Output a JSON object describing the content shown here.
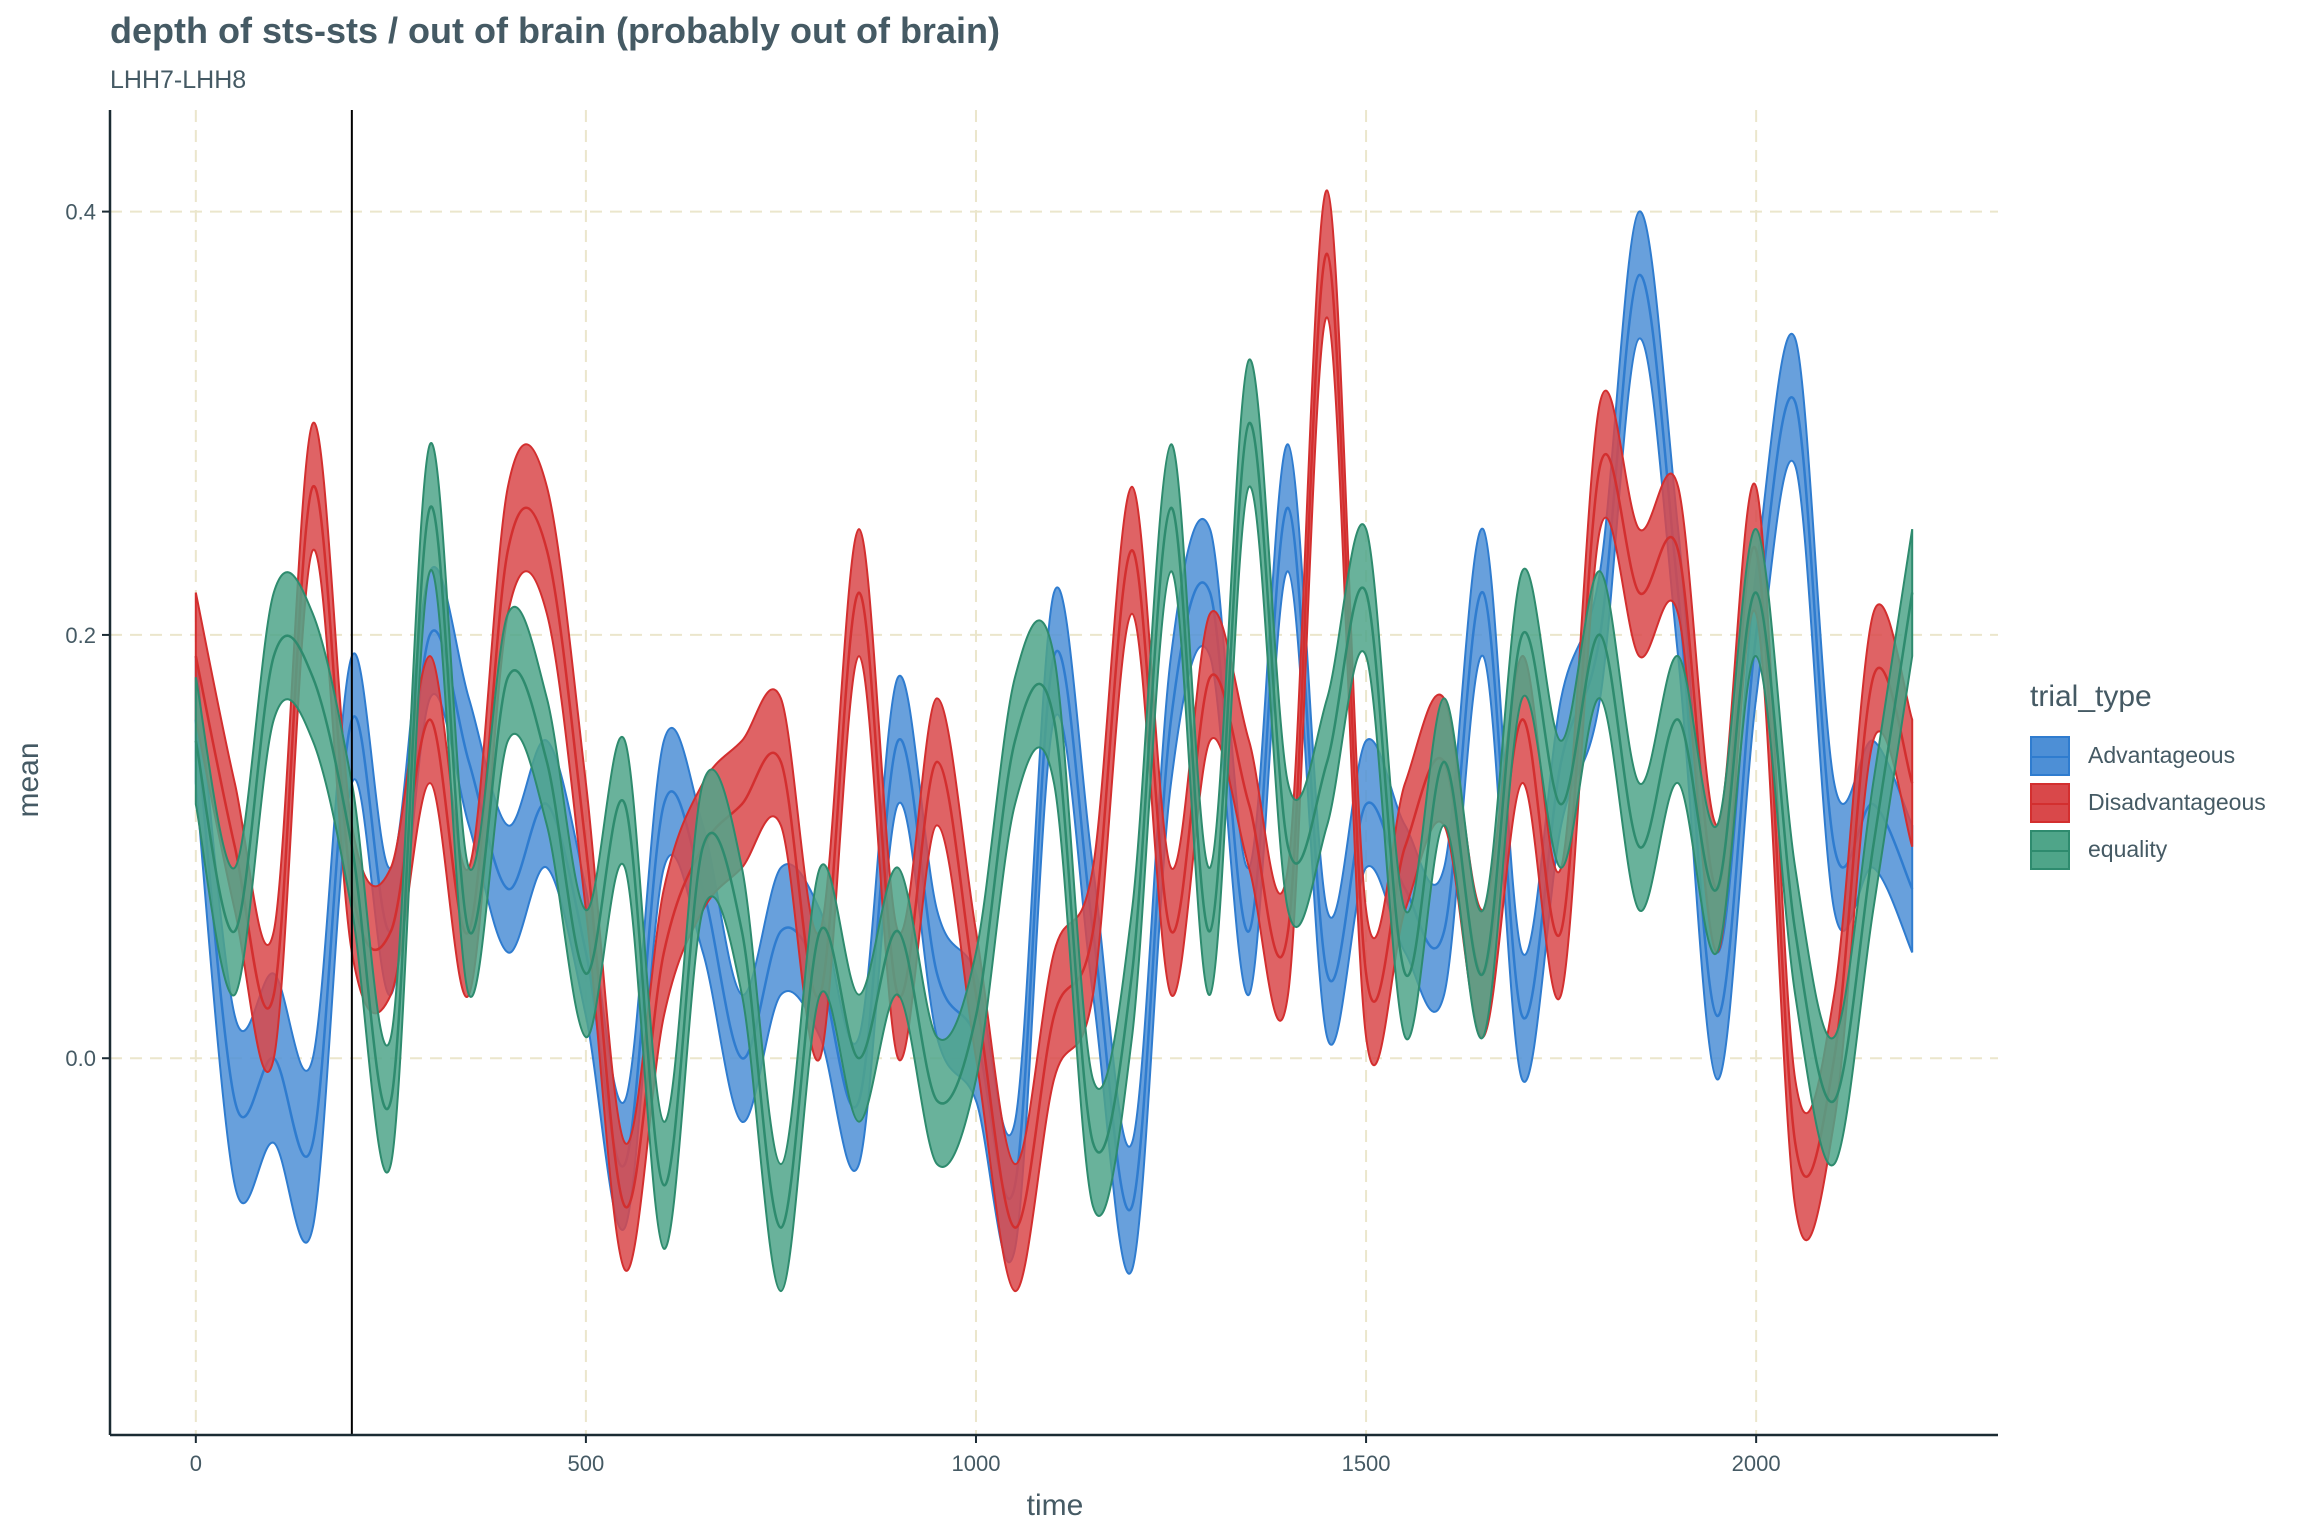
{
  "chart_data": {
    "type": "area",
    "title": "depth of sts-sts / out of brain (probably out of brain)",
    "subtitle": "LHH7-LHH8",
    "xlabel": "time",
    "ylabel": "mean",
    "xlim": [
      -110,
      2310
    ],
    "ylim": [
      -0.178,
      0.448
    ],
    "xticks": [
      0,
      500,
      1000,
      1500,
      2000
    ],
    "xtick_labels": [
      "0",
      "500",
      "1000",
      "1500",
      "2000"
    ],
    "yticks": [
      0.0,
      0.2,
      0.4
    ],
    "ytick_labels": [
      "0.0",
      "0.2",
      "0.4"
    ],
    "grid": true,
    "vline_x": 200,
    "legend_title": "trial_type",
    "legend_position": "right",
    "x": [
      0,
      50,
      100,
      150,
      200,
      250,
      300,
      350,
      400,
      450,
      500,
      550,
      600,
      650,
      700,
      750,
      800,
      850,
      900,
      950,
      1000,
      1050,
      1100,
      1150,
      1200,
      1250,
      1300,
      1350,
      1400,
      1450,
      1500,
      1550,
      1600,
      1650,
      1700,
      1750,
      1800,
      1850,
      1900,
      1950,
      2000,
      2050,
      2100,
      2150,
      2200
    ],
    "series": [
      {
        "name": "Advantageous",
        "color": "#2f7ccf",
        "fill": "#4d8fd6",
        "mean": [
          0.16,
          -0.02,
          0.0,
          -0.04,
          0.16,
          0.06,
          0.2,
          0.14,
          0.08,
          0.12,
          0.05,
          -0.05,
          0.12,
          0.08,
          0.0,
          0.06,
          0.04,
          -0.02,
          0.15,
          0.04,
          0.01,
          -0.06,
          0.19,
          0.06,
          -0.07,
          0.16,
          0.22,
          0.06,
          0.26,
          0.04,
          0.12,
          0.08,
          0.06,
          0.22,
          0.02,
          0.14,
          0.2,
          0.37,
          0.22,
          0.02,
          0.2,
          0.31,
          0.1,
          0.12,
          0.08
        ],
        "lower": [
          0.13,
          -0.06,
          -0.04,
          -0.08,
          0.13,
          0.03,
          0.17,
          0.11,
          0.05,
          0.09,
          0.02,
          -0.08,
          0.09,
          0.05,
          -0.03,
          0.03,
          0.01,
          -0.05,
          0.12,
          0.01,
          -0.02,
          -0.09,
          0.16,
          0.03,
          -0.1,
          0.13,
          0.19,
          0.03,
          0.23,
          0.01,
          0.09,
          0.05,
          0.03,
          0.19,
          -0.01,
          0.11,
          0.17,
          0.34,
          0.19,
          -0.01,
          0.17,
          0.28,
          0.07,
          0.09,
          0.05
        ],
        "upper": [
          0.19,
          0.02,
          0.04,
          0.0,
          0.19,
          0.09,
          0.23,
          0.17,
          0.11,
          0.15,
          0.08,
          -0.02,
          0.15,
          0.11,
          0.03,
          0.09,
          0.07,
          0.01,
          0.18,
          0.07,
          0.04,
          -0.03,
          0.22,
          0.09,
          -0.04,
          0.19,
          0.25,
          0.09,
          0.29,
          0.07,
          0.15,
          0.11,
          0.09,
          0.25,
          0.05,
          0.17,
          0.23,
          0.4,
          0.25,
          0.05,
          0.23,
          0.34,
          0.13,
          0.15,
          0.11
        ]
      },
      {
        "name": "Disadvantageous",
        "color": "#d32f2f",
        "fill": "#d9484a",
        "mean": [
          0.19,
          0.1,
          0.03,
          0.27,
          0.08,
          0.06,
          0.16,
          0.06,
          0.24,
          0.24,
          0.1,
          -0.07,
          0.05,
          0.1,
          0.12,
          0.14,
          0.03,
          0.22,
          0.03,
          0.14,
          0.03,
          -0.08,
          0.02,
          0.06,
          0.24,
          0.06,
          0.18,
          0.12,
          0.06,
          0.38,
          0.04,
          0.1,
          0.14,
          0.04,
          0.16,
          0.06,
          0.28,
          0.22,
          0.24,
          0.08,
          0.24,
          -0.04,
          0.0,
          0.18,
          0.13
        ],
        "lower": [
          0.16,
          0.07,
          0.0,
          0.24,
          0.05,
          0.03,
          0.13,
          0.03,
          0.21,
          0.21,
          0.07,
          -0.1,
          0.02,
          0.07,
          0.09,
          0.11,
          0.0,
          0.19,
          0.0,
          0.11,
          0.0,
          -0.11,
          -0.01,
          0.03,
          0.21,
          0.03,
          0.15,
          0.09,
          0.03,
          0.35,
          0.01,
          0.07,
          0.11,
          0.01,
          0.13,
          0.03,
          0.25,
          0.19,
          0.21,
          0.05,
          0.21,
          -0.07,
          -0.03,
          0.15,
          0.1
        ],
        "upper": [
          0.22,
          0.13,
          0.06,
          0.3,
          0.11,
          0.09,
          0.19,
          0.09,
          0.27,
          0.27,
          0.13,
          -0.04,
          0.08,
          0.13,
          0.15,
          0.17,
          0.06,
          0.25,
          0.06,
          0.17,
          0.06,
          -0.05,
          0.05,
          0.09,
          0.27,
          0.09,
          0.21,
          0.15,
          0.09,
          0.41,
          0.07,
          0.13,
          0.17,
          0.07,
          0.19,
          0.09,
          0.31,
          0.25,
          0.27,
          0.11,
          0.27,
          -0.01,
          0.03,
          0.21,
          0.16
        ]
      },
      {
        "name": "equality",
        "color": "#2e8b6e",
        "fill": "#4fa589",
        "mean": [
          0.15,
          0.06,
          0.19,
          0.18,
          0.1,
          -0.02,
          0.26,
          0.06,
          0.18,
          0.14,
          0.04,
          0.12,
          -0.06,
          0.1,
          0.06,
          -0.08,
          0.06,
          0.0,
          0.06,
          -0.02,
          0.02,
          0.15,
          0.16,
          -0.04,
          0.04,
          0.26,
          0.06,
          0.3,
          0.1,
          0.14,
          0.22,
          0.04,
          0.14,
          0.04,
          0.2,
          0.12,
          0.2,
          0.1,
          0.16,
          0.08,
          0.22,
          0.06,
          -0.02,
          0.1,
          0.22
        ],
        "lower": [
          0.12,
          0.03,
          0.16,
          0.15,
          0.07,
          -0.05,
          0.23,
          0.03,
          0.15,
          0.11,
          0.01,
          0.09,
          -0.09,
          0.07,
          0.03,
          -0.11,
          0.03,
          -0.03,
          0.03,
          -0.05,
          -0.01,
          0.12,
          0.13,
          -0.07,
          0.01,
          0.23,
          0.03,
          0.27,
          0.07,
          0.11,
          0.19,
          0.01,
          0.11,
          0.01,
          0.17,
          0.09,
          0.17,
          0.07,
          0.13,
          0.05,
          0.19,
          0.03,
          -0.05,
          0.07,
          0.19
        ],
        "upper": [
          0.18,
          0.09,
          0.22,
          0.21,
          0.13,
          0.01,
          0.29,
          0.09,
          0.21,
          0.17,
          0.07,
          0.15,
          -0.03,
          0.13,
          0.09,
          -0.05,
          0.09,
          0.03,
          0.09,
          0.01,
          0.05,
          0.18,
          0.19,
          -0.01,
          0.07,
          0.29,
          0.09,
          0.33,
          0.13,
          0.17,
          0.25,
          0.07,
          0.17,
          0.07,
          0.23,
          0.15,
          0.23,
          0.13,
          0.19,
          0.11,
          0.25,
          0.09,
          0.01,
          0.13,
          0.25
        ]
      }
    ]
  }
}
